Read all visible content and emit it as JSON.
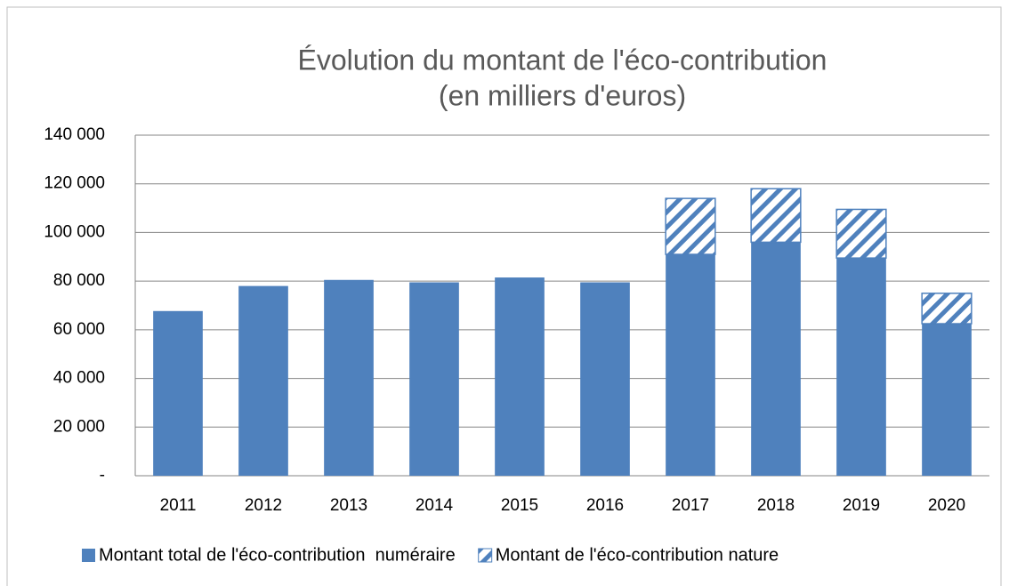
{
  "chart_data": {
    "type": "stacked_bar",
    "title": "Évolution du montant de l'éco-contribution",
    "subtitle": "(en milliers d'euros)",
    "categories": [
      "2011",
      "2012",
      "2013",
      "2014",
      "2015",
      "2016",
      "2017",
      "2018",
      "2019",
      "2020"
    ],
    "series": [
      {
        "name": "Montant total de l'éco-contribution  numéraire",
        "color": "#4f81bd",
        "pattern": "solid",
        "values": [
          67700,
          78000,
          80500,
          79500,
          81500,
          79500,
          91000,
          96000,
          89500,
          62500
        ]
      },
      {
        "name": "Montant de l'éco-contribution nature",
        "color": "#4f81bd",
        "pattern": "hatch",
        "values": [
          null,
          null,
          null,
          null,
          null,
          null,
          23000,
          22000,
          20000,
          12500
        ]
      }
    ],
    "ylim": [
      0,
      140000
    ],
    "yticks": [
      {
        "value": 0,
        "label": "-"
      },
      {
        "value": 20000,
        "label": "20 000"
      },
      {
        "value": 40000,
        "label": "40 000"
      },
      {
        "value": 60000,
        "label": "60 000"
      },
      {
        "value": 80000,
        "label": "80 000"
      },
      {
        "value": 100000,
        "label": "100 000"
      },
      {
        "value": 120000,
        "label": "120 000"
      },
      {
        "value": 140000,
        "label": "140 000"
      }
    ],
    "grid": true,
    "legend": "bottom"
  }
}
